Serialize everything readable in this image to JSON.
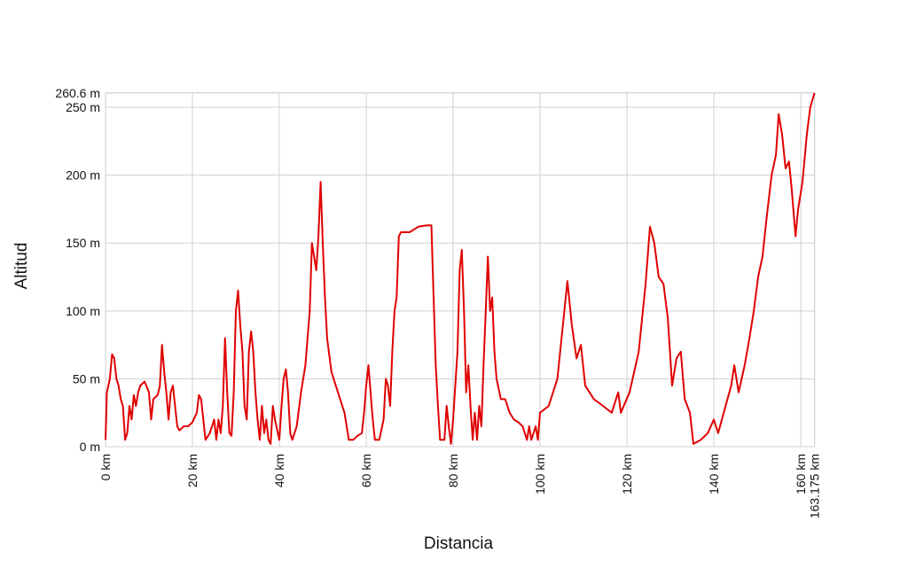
{
  "chart_data": {
    "type": "line",
    "x_label": "Distancia",
    "y_label": "Altitud",
    "xlim": [
      0,
      163.175
    ],
    "ylim": [
      0,
      260.6
    ],
    "xticks": [
      {
        "value": 0,
        "label": "0 km"
      },
      {
        "value": 20,
        "label": "20 km"
      },
      {
        "value": 40,
        "label": "40 km"
      },
      {
        "value": 60,
        "label": "60 km"
      },
      {
        "value": 80,
        "label": "80 km"
      },
      {
        "value": 100,
        "label": "100 km"
      },
      {
        "value": 120,
        "label": "120 km"
      },
      {
        "value": 140,
        "label": "140 km"
      },
      {
        "value": 160,
        "label": "160 km"
      },
      {
        "value": 163.175,
        "label": "163.175 km"
      }
    ],
    "yticks": [
      {
        "value": 0,
        "label": "0 m"
      },
      {
        "value": 50,
        "label": "50 m"
      },
      {
        "value": 100,
        "label": "100 m"
      },
      {
        "value": 150,
        "label": "150 m"
      },
      {
        "value": 200,
        "label": "200 m"
      },
      {
        "value": 250,
        "label": "250 m"
      },
      {
        "value": 260.6,
        "label": "260.6 m"
      }
    ],
    "grid": true,
    "color": "#e00000",
    "x": [
      0,
      0.3,
      1,
      1.5,
      2,
      2.5,
      3,
      3.5,
      4,
      4.5,
      5,
      5.5,
      6,
      6.5,
      7,
      7.5,
      8,
      9,
      10,
      10.5,
      11,
      12,
      12.5,
      13,
      13.5,
      14,
      14.5,
      15,
      15.5,
      16,
      16.5,
      17,
      18,
      19,
      20,
      21,
      21.5,
      22,
      22.5,
      23,
      24,
      25,
      25.5,
      26,
      26.5,
      27,
      27.5,
      28,
      28.5,
      29,
      29.5,
      30,
      30.5,
      31,
      31.5,
      32,
      32.5,
      33,
      33.5,
      34,
      34.5,
      35,
      35.5,
      36,
      36.5,
      37,
      37.5,
      38,
      38.5,
      39,
      40,
      40.5,
      41,
      41.5,
      42,
      42.5,
      43,
      44,
      45,
      46,
      47,
      47.5,
      48,
      48.5,
      49,
      49.5,
      50,
      50.5,
      51,
      52,
      53,
      54,
      55,
      56,
      57,
      58,
      59,
      59.5,
      60,
      60.5,
      61,
      61.5,
      62,
      63,
      64,
      64.5,
      65,
      65.5,
      66,
      66.5,
      67,
      67.5,
      68,
      70,
      72,
      74,
      75,
      75.5,
      76,
      76.5,
      77,
      78,
      78.5,
      79,
      79.5,
      80,
      81,
      81.5,
      82,
      82.5,
      83,
      83.5,
      84,
      84.5,
      85,
      85.5,
      86,
      86.5,
      87,
      87.5,
      88,
      88.5,
      89,
      89.5,
      90,
      91,
      92,
      93,
      94,
      95,
      96,
      97,
      97.5,
      98,
      99,
      99.5,
      100,
      102,
      104,
      106.3,
      107.3,
      108.4,
      109.4,
      110.4,
      112.4,
      114.5,
      116.5,
      118,
      118.6,
      120.6,
      122.7,
      124.3,
      125.3,
      126.3,
      127.3,
      128.4,
      129.4,
      130.4,
      131.4,
      132.4,
      133.3,
      134.5,
      135.3,
      137,
      138.6,
      140,
      141,
      142.7,
      144,
      144.7,
      145.7,
      147.1,
      148.2,
      149.2,
      150.2,
      151.2,
      152.2,
      153.3,
      154.3,
      154.9,
      155.7,
      156.5,
      157.3,
      157.9,
      158.8,
      159.4,
      160.4,
      161.4,
      162.2,
      163.175
    ],
    "values": [
      5,
      40,
      50,
      68,
      65,
      50,
      45,
      35,
      30,
      5,
      10,
      30,
      20,
      38,
      30,
      40,
      45,
      48,
      40,
      20,
      35,
      38,
      45,
      75,
      55,
      40,
      20,
      40,
      45,
      30,
      15,
      12,
      15,
      15,
      18,
      25,
      38,
      35,
      20,
      5,
      10,
      20,
      5,
      20,
      10,
      30,
      80,
      40,
      10,
      8,
      40,
      100,
      115,
      90,
      70,
      30,
      20,
      70,
      85,
      70,
      40,
      20,
      5,
      30,
      10,
      20,
      5,
      2,
      30,
      20,
      5,
      30,
      50,
      57,
      40,
      10,
      5,
      15,
      40,
      60,
      100,
      150,
      140,
      130,
      155,
      195,
      150,
      110,
      80,
      55,
      45,
      35,
      25,
      5,
      5,
      8,
      10,
      25,
      45,
      60,
      40,
      20,
      5,
      5,
      20,
      50,
      45,
      30,
      70,
      100,
      110,
      155,
      158,
      158,
      162,
      163,
      163,
      110,
      60,
      30,
      5,
      5,
      30,
      15,
      2,
      20,
      70,
      130,
      145,
      100,
      40,
      60,
      30,
      5,
      25,
      5,
      30,
      15,
      60,
      100,
      140,
      100,
      110,
      70,
      50,
      35,
      35,
      25,
      20,
      18,
      15,
      5,
      15,
      5,
      15,
      5,
      25,
      30,
      50,
      122,
      90,
      65,
      75,
      45,
      35,
      30,
      25,
      40,
      25,
      40,
      70,
      120,
      162,
      150,
      125,
      120,
      95,
      45,
      65,
      70,
      35,
      25,
      2,
      5,
      10,
      20,
      10,
      30,
      45,
      60,
      40,
      60,
      80,
      100,
      125,
      140,
      170,
      200,
      215,
      245,
      230,
      205,
      210,
      190,
      155,
      175,
      195,
      230,
      250,
      260.6
    ]
  }
}
